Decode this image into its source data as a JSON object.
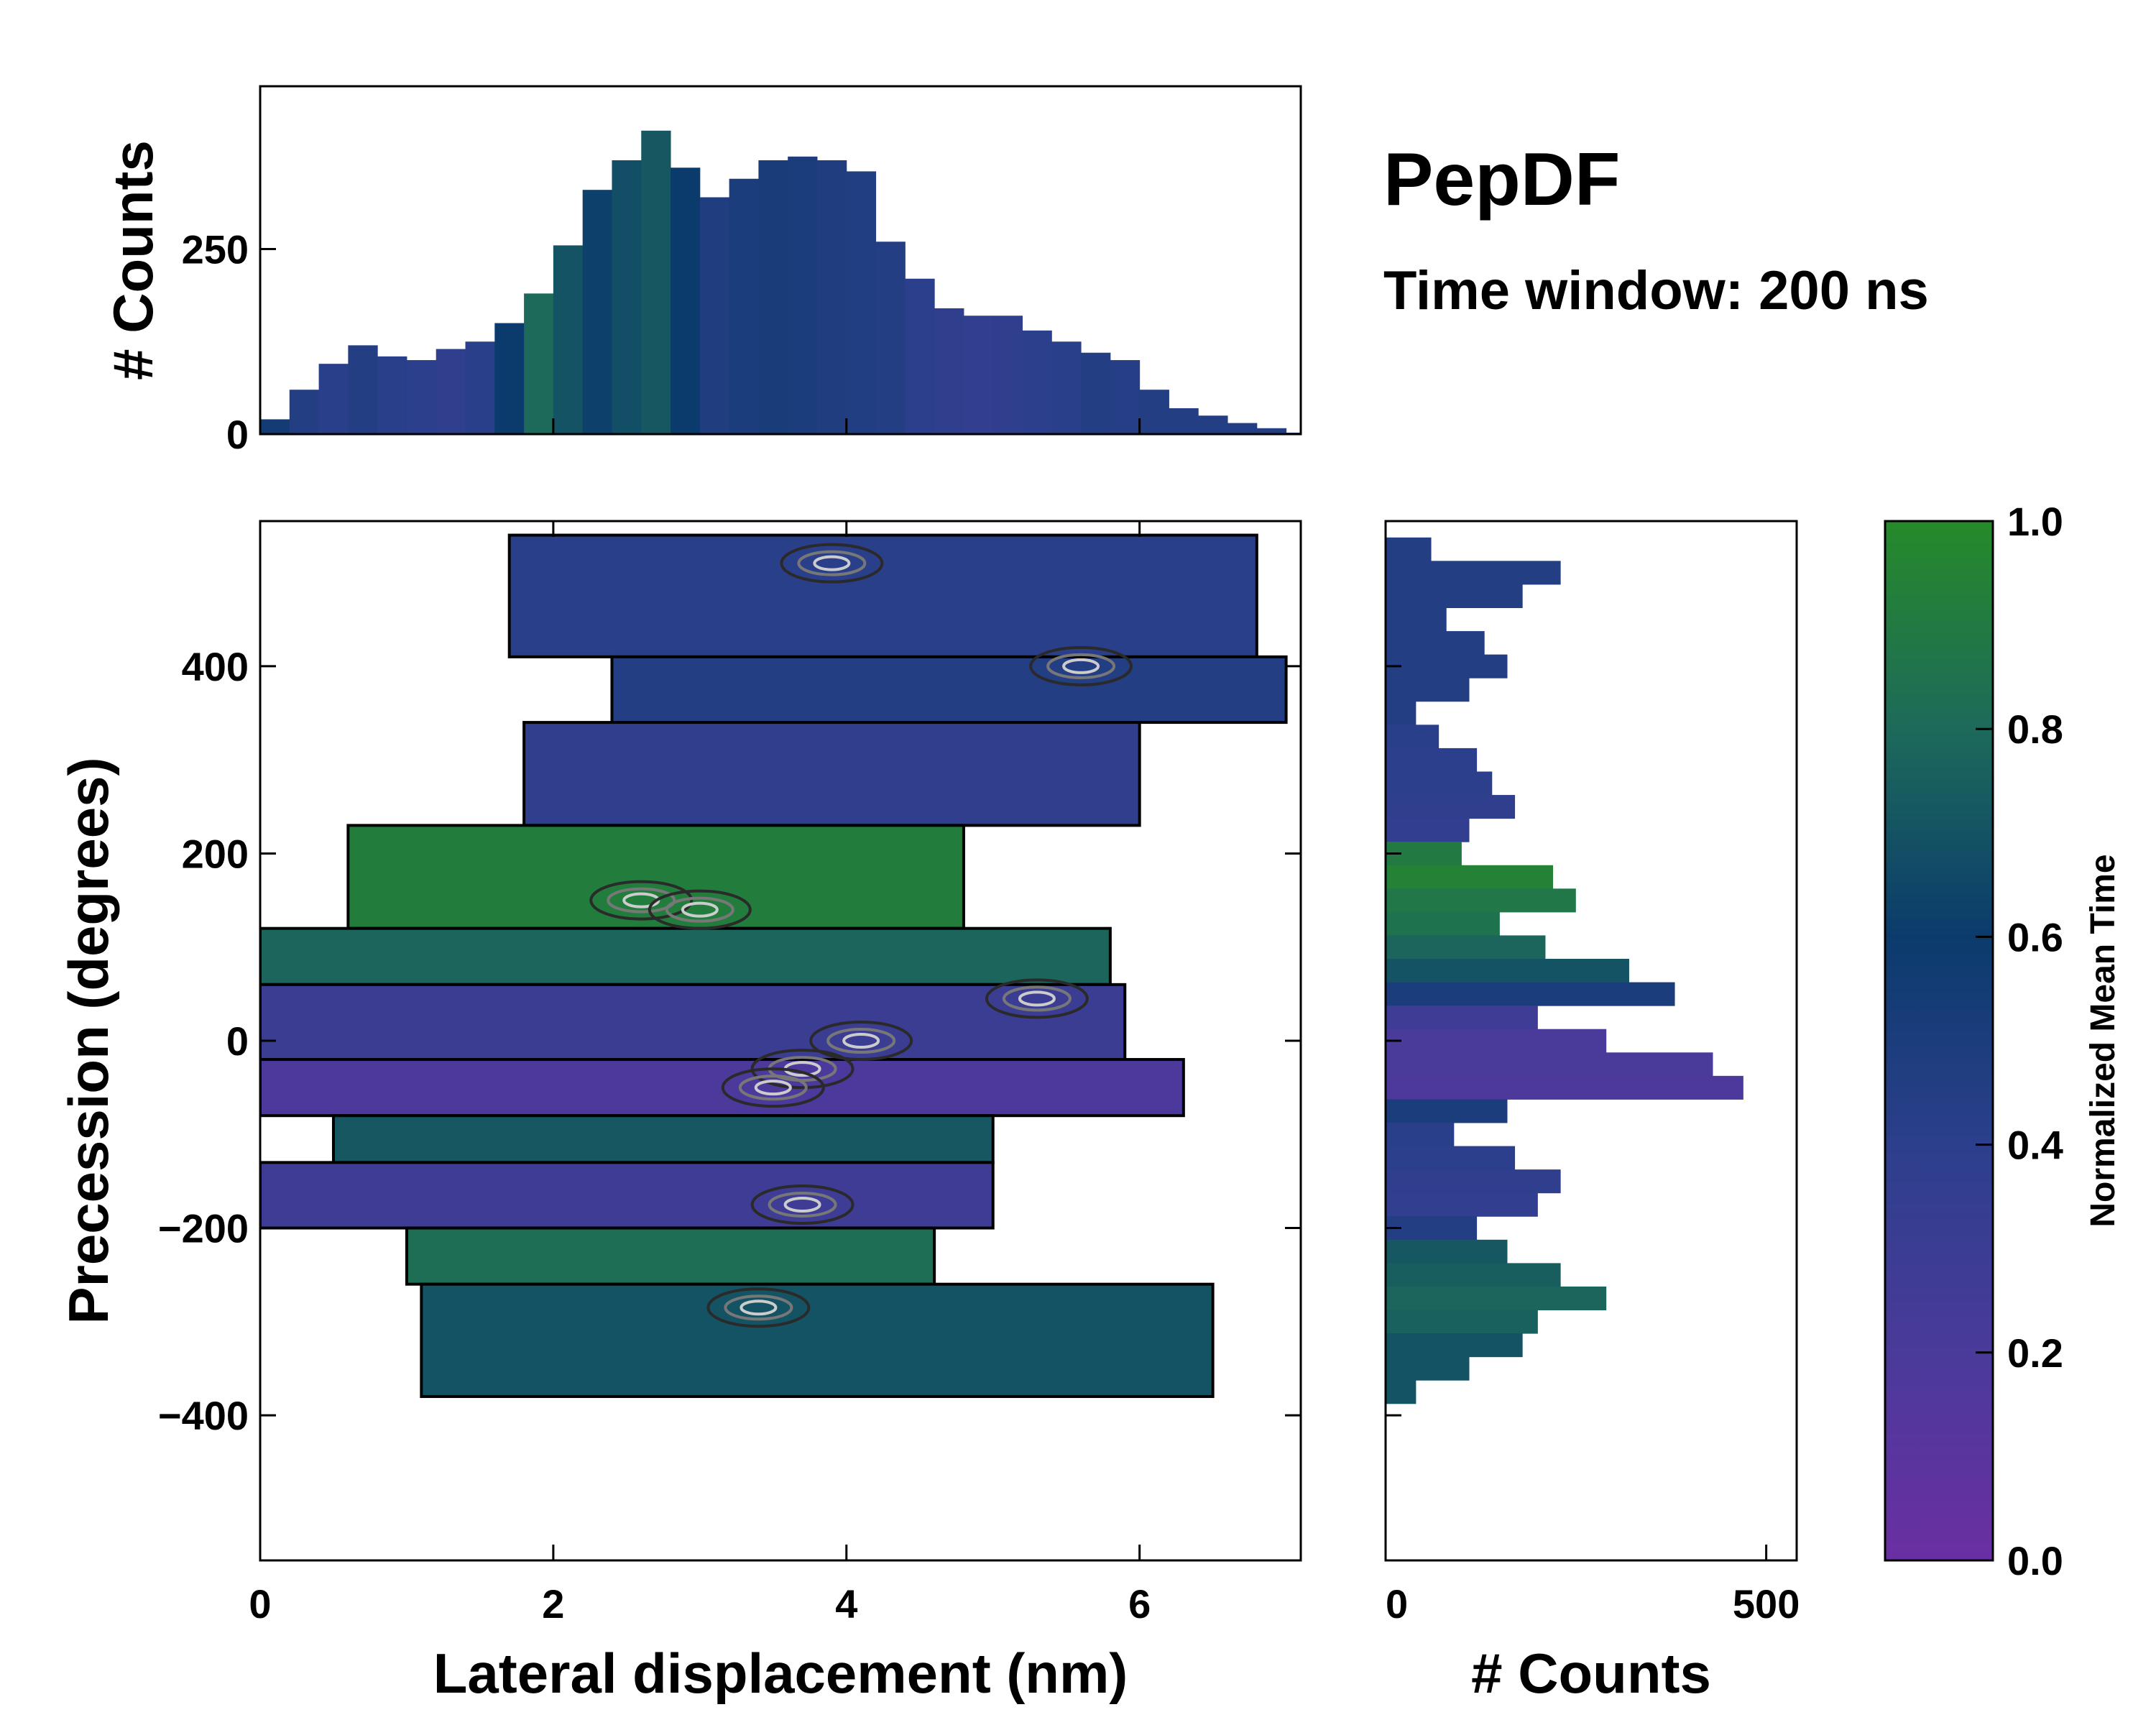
{
  "title": "PepDF",
  "subtitle": "Time window: 200 ns",
  "chart_data": [
    {
      "type": "heatmap",
      "name": "joint-distribution",
      "xlabel": "Lateral displacement (nm)",
      "ylabel": "Precession (degrees)",
      "xlim": [
        0,
        7.1
      ],
      "ylim": [
        -555,
        555
      ],
      "xticks": [
        0,
        2,
        4,
        6
      ],
      "yticks": [
        -400,
        -200,
        0,
        200,
        400
      ],
      "xtick_labels": [
        "0",
        "2",
        "4",
        "6"
      ],
      "ytick_labels": [
        "−400",
        "−200",
        "0",
        "200",
        "400"
      ],
      "color_meaning": "Normalized Mean Time",
      "bands": [
        {
          "y": [
            410,
            540
          ],
          "x": [
            1.7,
            6.8
          ],
          "time": 0.42
        },
        {
          "y": [
            340,
            410
          ],
          "x": [
            2.4,
            7.0
          ],
          "time": 0.45
        },
        {
          "y": [
            230,
            340
          ],
          "x": [
            1.8,
            6.0
          ],
          "time": 0.38
        },
        {
          "y": [
            120,
            230
          ],
          "x": [
            0.6,
            4.8
          ],
          "time": 0.92
        },
        {
          "y": [
            60,
            120
          ],
          "x": [
            0.0,
            5.8
          ],
          "time": 0.78
        },
        {
          "y": [
            -20,
            60
          ],
          "x": [
            0.0,
            5.9
          ],
          "time": 0.3
        },
        {
          "y": [
            -80,
            -20
          ],
          "x": [
            0.0,
            6.3
          ],
          "time": 0.18
        },
        {
          "y": [
            -130,
            -80
          ],
          "x": [
            0.5,
            5.0
          ],
          "time": 0.72
        },
        {
          "y": [
            -200,
            -130
          ],
          "x": [
            0.0,
            5.0
          ],
          "time": 0.28
        },
        {
          "y": [
            -260,
            -200
          ],
          "x": [
            1.0,
            4.6
          ],
          "time": 0.82
        },
        {
          "y": [
            -380,
            -260
          ],
          "x": [
            1.1,
            6.5
          ],
          "time": 0.7
        }
      ],
      "hotspots": [
        {
          "x": 2.6,
          "y": 150
        },
        {
          "x": 3.0,
          "y": 140
        },
        {
          "x": 3.7,
          "y": -30
        },
        {
          "x": 3.5,
          "y": -50
        },
        {
          "x": 3.4,
          "y": -285
        },
        {
          "x": 5.3,
          "y": 45
        },
        {
          "x": 3.9,
          "y": 510
        },
        {
          "x": 5.6,
          "y": 400
        },
        {
          "x": 4.1,
          "y": 0
        },
        {
          "x": 3.7,
          "y": -175
        }
      ]
    },
    {
      "type": "bar",
      "name": "top-marginal-histogram",
      "xlabel": "",
      "ylabel": "# Counts",
      "xlim": [
        0,
        7.1
      ],
      "ylim": [
        0,
        470
      ],
      "yticks": [
        0,
        250
      ],
      "ytick_labels": [
        "0",
        "250"
      ],
      "bin_centers": [
        0.1,
        0.3,
        0.5,
        0.7,
        0.9,
        1.1,
        1.3,
        1.5,
        1.7,
        1.9,
        2.1,
        2.3,
        2.5,
        2.7,
        2.9,
        3.1,
        3.3,
        3.5,
        3.7,
        3.9,
        4.1,
        4.3,
        4.5,
        4.7,
        4.9,
        5.1,
        5.3,
        5.5,
        5.7,
        5.9,
        6.1,
        6.3,
        6.5,
        6.7,
        6.9,
        7.05
      ],
      "values": [
        20,
        60,
        95,
        120,
        105,
        100,
        115,
        125,
        150,
        190,
        255,
        330,
        370,
        410,
        360,
        320,
        345,
        370,
        375,
        370,
        355,
        260,
        210,
        170,
        160,
        160,
        140,
        125,
        110,
        100,
        60,
        35,
        25,
        15,
        8,
        2
      ],
      "time": [
        0.55,
        0.45,
        0.42,
        0.45,
        0.42,
        0.4,
        0.38,
        0.42,
        0.6,
        0.8,
        0.7,
        0.62,
        0.68,
        0.72,
        0.6,
        0.48,
        0.5,
        0.52,
        0.5,
        0.48,
        0.46,
        0.45,
        0.4,
        0.38,
        0.36,
        0.38,
        0.4,
        0.42,
        0.45,
        0.44,
        0.45,
        0.45,
        0.45,
        0.45,
        0.45,
        0.45
      ]
    },
    {
      "type": "bar",
      "name": "right-marginal-histogram",
      "orientation": "horizontal",
      "xlabel": "# Counts",
      "ylabel": "",
      "xlim": [
        0,
        540
      ],
      "xticks": [
        0,
        500
      ],
      "xtick_labels": [
        "0",
        "500"
      ],
      "ylim": [
        -555,
        555
      ],
      "bin_centers": [
        525,
        500,
        475,
        450,
        425,
        400,
        375,
        350,
        325,
        300,
        275,
        250,
        225,
        200,
        175,
        150,
        125,
        100,
        75,
        50,
        25,
        0,
        -25,
        -50,
        -75,
        -100,
        -125,
        -150,
        -175,
        -200,
        -225,
        -250,
        -275,
        -300,
        -325,
        -350,
        -375
      ],
      "values": [
        60,
        230,
        180,
        80,
        130,
        160,
        110,
        40,
        70,
        120,
        140,
        170,
        110,
        100,
        220,
        250,
        150,
        210,
        320,
        380,
        200,
        290,
        430,
        470,
        160,
        90,
        170,
        230,
        200,
        120,
        160,
        230,
        290,
        200,
        180,
        110,
        40
      ],
      "time": [
        0.45,
        0.45,
        0.45,
        0.45,
        0.45,
        0.45,
        0.45,
        0.45,
        0.42,
        0.4,
        0.4,
        0.38,
        0.36,
        0.9,
        0.95,
        0.88,
        0.85,
        0.78,
        0.7,
        0.5,
        0.28,
        0.2,
        0.2,
        0.18,
        0.5,
        0.42,
        0.4,
        0.38,
        0.36,
        0.45,
        0.72,
        0.75,
        0.78,
        0.76,
        0.7,
        0.7,
        0.7
      ]
    }
  ],
  "colorbar": {
    "label": "Normalized Mean Time",
    "ticks": [
      0.0,
      0.2,
      0.4,
      0.6,
      0.8,
      1.0
    ],
    "tick_labels": [
      "0.0",
      "0.2",
      "0.4",
      "0.6",
      "0.8",
      "1.0"
    ],
    "colors": [
      "#6a2fa2",
      "#4a3a9a",
      "#2c3f8c",
      "#0b3b6c",
      "#1d6a5a",
      "#268a2a"
    ]
  }
}
